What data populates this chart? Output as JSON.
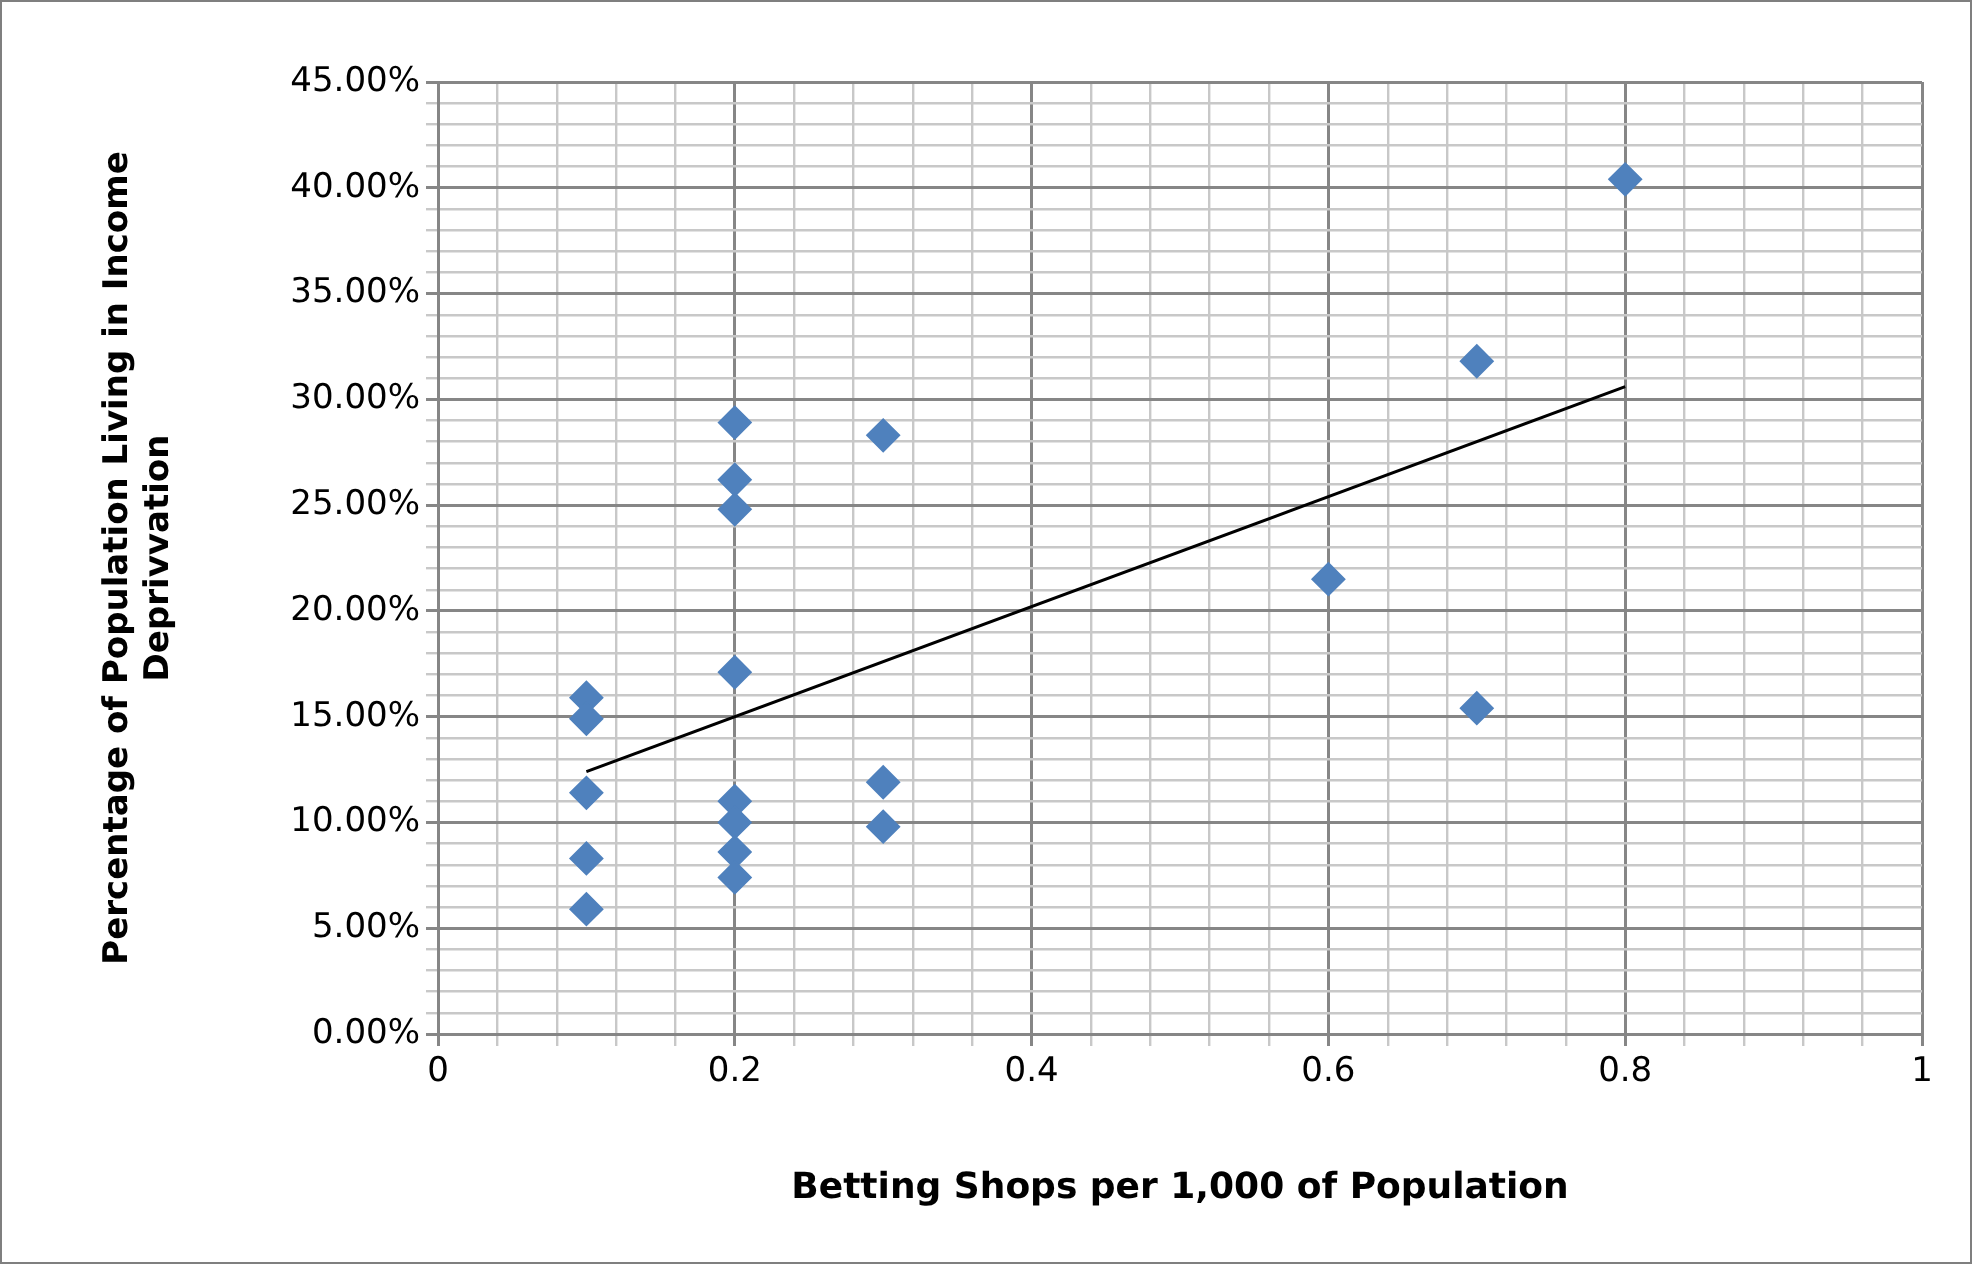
{
  "chart_data": {
    "type": "scatter",
    "xlabel": "Betting Shops per 1,000 of Population",
    "ylabel": "Percentage of Population Living in Income Deprivvation",
    "marker": "diamond",
    "grid": true,
    "legend": false,
    "xlim": [
      0,
      1
    ],
    "ylim": [
      0,
      45
    ],
    "xticks": [
      0,
      {
        "value": 0.04,
        "label": null
      },
      {
        "value": 0.08,
        "label": null
      },
      {
        "value": 0.12,
        "label": null
      },
      {
        "value": 0.16,
        "label": null
      },
      {
        "value": 0.2,
        "label": "0.2"
      },
      {
        "value": 0.24,
        "label": null
      },
      {
        "value": 0.28,
        "label": null
      },
      {
        "value": 0.32,
        "label": null
      },
      {
        "value": 0.36,
        "label": null
      },
      {
        "value": 0.4,
        "label": "0.4"
      },
      {
        "value": 0.44,
        "label": null
      },
      {
        "value": 0.48,
        "label": null
      },
      {
        "value": 0.52,
        "label": null
      },
      {
        "value": 0.56,
        "label": null
      },
      {
        "value": 0.6,
        "label": "0.6"
      },
      {
        "value": 0.64,
        "label": null
      },
      {
        "value": 0.68,
        "label": null
      },
      {
        "value": 0.72,
        "label": null
      },
      {
        "value": 0.76,
        "label": null
      },
      {
        "value": 0.8,
        "label": "0.8"
      },
      {
        "value": 0.84,
        "label": null
      },
      {
        "value": 0.88,
        "label": null
      },
      {
        "value": 0.92,
        "label": null
      },
      {
        "value": 0.96,
        "label": null
      },
      1
    ],
    "yticks": [
      {
        "value": 0,
        "label": "0.00%"
      },
      {
        "value": 1,
        "label": null
      },
      {
        "value": 2,
        "label": null
      },
      {
        "value": 3,
        "label": null
      },
      {
        "value": 4,
        "label": null
      },
      {
        "value": 5,
        "label": "5.00%"
      },
      {
        "value": 6,
        "label": null
      },
      {
        "value": 7,
        "label": null
      },
      {
        "value": 8,
        "label": null
      },
      {
        "value": 9,
        "label": null
      },
      {
        "value": 10,
        "label": "10.00%"
      },
      {
        "value": 11,
        "label": null
      },
      {
        "value": 12,
        "label": null
      },
      {
        "value": 13,
        "label": null
      },
      {
        "value": 14,
        "label": null
      },
      {
        "value": 15,
        "label": "15.00%"
      },
      {
        "value": 16,
        "label": null
      },
      {
        "value": 17,
        "label": null
      },
      {
        "value": 18,
        "label": null
      },
      {
        "value": 19,
        "label": null
      },
      {
        "value": 20,
        "label": "20.00%"
      },
      {
        "value": 21,
        "label": null
      },
      {
        "value": 22,
        "label": null
      },
      {
        "value": 23,
        "label": null
      },
      {
        "value": 24,
        "label": null
      },
      {
        "value": 25,
        "label": "25.00%"
      },
      {
        "value": 26,
        "label": null
      },
      {
        "value": 27,
        "label": null
      },
      {
        "value": 28,
        "label": null
      },
      {
        "value": 29,
        "label": null
      },
      {
        "value": 30,
        "label": "30.00%"
      },
      {
        "value": 31,
        "label": null
      },
      {
        "value": 32,
        "label": null
      },
      {
        "value": 33,
        "label": null
      },
      {
        "value": 34,
        "label": null
      },
      {
        "value": 35,
        "label": "35.00%"
      },
      {
        "value": 36,
        "label": null
      },
      {
        "value": 37,
        "label": null
      },
      {
        "value": 38,
        "label": null
      },
      {
        "value": 39,
        "label": null
      },
      {
        "value": 40,
        "label": "40.00%"
      },
      {
        "value": 41,
        "label": null
      },
      {
        "value": 42,
        "label": null
      },
      {
        "value": 43,
        "label": null
      },
      {
        "value": 44,
        "label": null
      },
      {
        "value": 45,
        "label": "45.00%"
      }
    ],
    "series": [
      {
        "color": "#4f81bd",
        "x": [
          0.1,
          0.1,
          0.1,
          0.1,
          0.1,
          0.2,
          0.2,
          0.2,
          0.2,
          0.2,
          0.2,
          0.2,
          0.2,
          0.3,
          0.3,
          0.3,
          0.6,
          0.7,
          0.7,
          0.8
        ],
        "values": [
          15.9,
          14.9,
          11.4,
          8.3,
          5.9,
          28.9,
          26.2,
          24.8,
          17.1,
          11.0,
          10.0,
          8.6,
          7.4,
          28.3,
          11.9,
          9.8,
          21.5,
          31.8,
          15.4,
          40.4
        ]
      },
      {
        "type": "line",
        "color": "#000000",
        "marker": "none",
        "x": [
          0.1,
          0.8
        ],
        "values": [
          12.4,
          30.6
        ]
      }
    ]
  }
}
